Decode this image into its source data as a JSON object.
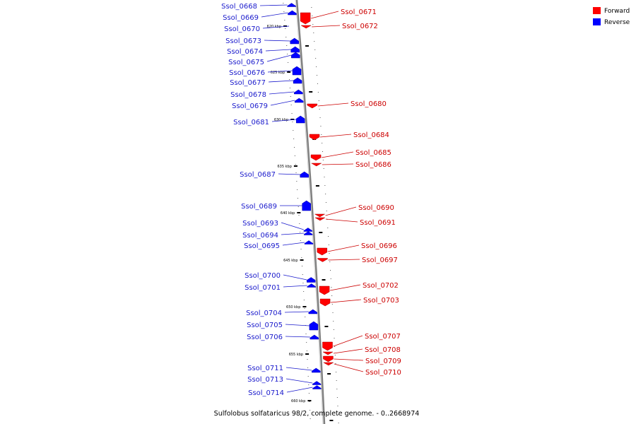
{
  "caption": "Sulfolobus solfataricus 98/2, complete genome. - 0..2668974",
  "legend": {
    "forward_label": "Forward",
    "reverse_label": "Reverse",
    "forward_color": "#ff0000",
    "reverse_color": "#0000ff"
  },
  "scale_marks": [
    "620 kbp",
    "625 kbp",
    "630 kbp",
    "635 kbp",
    "640 kbp",
    "645 kbp",
    "650 kbp",
    "655 kbp",
    "660 kbp"
  ],
  "reverse_genes": [
    "Ssol_0668",
    "Ssol_0669",
    "Ssol_0670",
    "Ssol_0673",
    "Ssol_0674",
    "Ssol_0675",
    "Ssol_0676",
    "Ssol_0677",
    "Ssol_0678",
    "Ssol_0679",
    "Ssol_0681",
    "Ssol_0687",
    "Ssol_0689",
    "Ssol_0693",
    "Ssol_0694",
    "Ssol_0695",
    "Ssol_0700",
    "Ssol_0701",
    "Ssol_0704",
    "Ssol_0705",
    "Ssol_0706",
    "Ssol_0711",
    "Ssol_0713",
    "Ssol_0714"
  ],
  "forward_genes": [
    "Ssol_0671",
    "Ssol_0672",
    "Ssol_0680",
    "Ssol_0684",
    "Ssol_0685",
    "Ssol_0686",
    "Ssol_0690",
    "Ssol_0691",
    "Ssol_0696",
    "Ssol_0697",
    "Ssol_0702",
    "Ssol_0703",
    "Ssol_0707",
    "Ssol_0708",
    "Ssol_0709",
    "Ssol_0710"
  ]
}
